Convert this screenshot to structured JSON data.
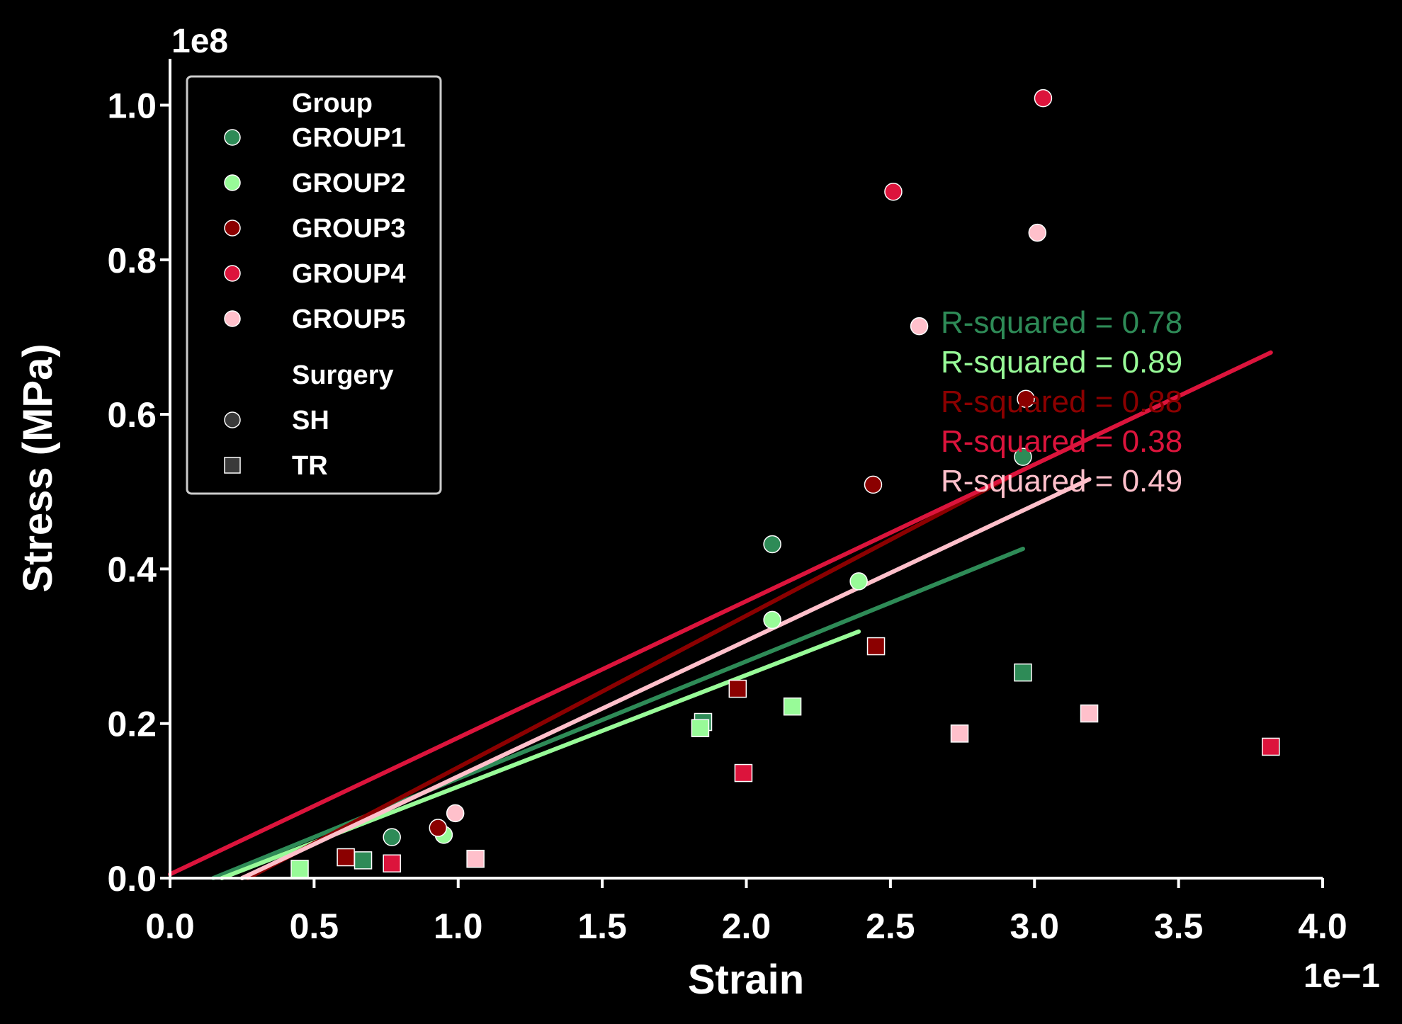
{
  "chart_data": {
    "type": "scatter",
    "title": "",
    "xlabel": "Strain",
    "ylabel": "Stress (MPa)",
    "x_offset_label": "1e−1",
    "y_offset_label": "1e8",
    "xlim": [
      0.0,
      4.0
    ],
    "ylim": [
      0.0,
      1.06
    ],
    "x_ticks": [
      "0.0",
      "0.5",
      "1.0",
      "1.5",
      "2.0",
      "2.5",
      "3.0",
      "3.5",
      "4.0"
    ],
    "y_ticks": [
      "0.0",
      "0.2",
      "0.4",
      "0.6",
      "0.8",
      "1.0"
    ],
    "legend": {
      "placement": "top-left",
      "group_title": "Group",
      "surgery_title": "Surgery",
      "groups": [
        {
          "name": "GROUP1",
          "color": "#2e8b57"
        },
        {
          "name": "GROUP2",
          "color": "#98fb98"
        },
        {
          "name": "GROUP3",
          "color": "#8b0000"
        },
        {
          "name": "GROUP4",
          "color": "#dc143c"
        },
        {
          "name": "GROUP5",
          "color": "#ffc0cb"
        }
      ],
      "surgeries": [
        {
          "name": "SH",
          "marker": "circle"
        },
        {
          "name": "TR",
          "marker": "square"
        }
      ]
    },
    "series": [
      {
        "name": "GROUP1",
        "color": "#2e8b57",
        "points": [
          {
            "x": 0.77,
            "y": 0.053,
            "surgery": "SH"
          },
          {
            "x": 2.09,
            "y": 0.432,
            "surgery": "SH"
          },
          {
            "x": 2.96,
            "y": 0.545,
            "surgery": "SH"
          },
          {
            "x": 0.67,
            "y": 0.023,
            "surgery": "TR"
          },
          {
            "x": 1.85,
            "y": 0.202,
            "surgery": "TR"
          },
          {
            "x": 2.96,
            "y": 0.266,
            "surgery": "TR"
          }
        ],
        "fit": {
          "x": [
            0.15,
            2.96
          ],
          "y": [
            0.0,
            0.426
          ]
        },
        "r_squared": "R-squared = 0.78"
      },
      {
        "name": "GROUP2",
        "color": "#98fb98",
        "points": [
          {
            "x": 0.95,
            "y": 0.056,
            "surgery": "SH"
          },
          {
            "x": 2.09,
            "y": 0.334,
            "surgery": "SH"
          },
          {
            "x": 2.39,
            "y": 0.384,
            "surgery": "SH"
          },
          {
            "x": 0.45,
            "y": 0.012,
            "surgery": "TR"
          },
          {
            "x": 1.84,
            "y": 0.194,
            "surgery": "TR"
          },
          {
            "x": 2.16,
            "y": 0.222,
            "surgery": "TR"
          }
        ],
        "fit": {
          "x": [
            0.18,
            2.39
          ],
          "y": [
            0.0,
            0.319
          ]
        },
        "r_squared": "R-squared = 0.89"
      },
      {
        "name": "GROUP3",
        "color": "#8b0000",
        "points": [
          {
            "x": 0.93,
            "y": 0.065,
            "surgery": "SH"
          },
          {
            "x": 2.44,
            "y": 0.509,
            "surgery": "SH"
          },
          {
            "x": 2.97,
            "y": 0.62,
            "surgery": "SH"
          },
          {
            "x": 0.61,
            "y": 0.027,
            "surgery": "TR"
          },
          {
            "x": 1.97,
            "y": 0.245,
            "surgery": "TR"
          },
          {
            "x": 2.45,
            "y": 0.3,
            "surgery": "TR"
          }
        ],
        "fit": {
          "x": [
            0.27,
            2.97
          ],
          "y": [
            0.0,
            0.53
          ]
        },
        "r_squared": "R-squared = 0.88"
      },
      {
        "name": "GROUP4",
        "color": "#dc143c",
        "points": [
          {
            "x": 2.51,
            "y": 0.888,
            "surgery": "SH"
          },
          {
            "x": 3.03,
            "y": 1.009,
            "surgery": "SH"
          },
          {
            "x": 0.77,
            "y": 0.019,
            "surgery": "TR"
          },
          {
            "x": 1.99,
            "y": 0.136,
            "surgery": "TR"
          },
          {
            "x": 3.82,
            "y": 0.17,
            "surgery": "TR"
          }
        ],
        "fit": {
          "x": [
            0.0,
            3.82
          ],
          "y": [
            0.005,
            0.68
          ]
        },
        "r_squared": "R-squared = 0.38"
      },
      {
        "name": "GROUP5",
        "color": "#ffc0cb",
        "points": [
          {
            "x": 0.99,
            "y": 0.084,
            "surgery": "SH"
          },
          {
            "x": 2.6,
            "y": 0.714,
            "surgery": "SH"
          },
          {
            "x": 3.01,
            "y": 0.835,
            "surgery": "SH"
          },
          {
            "x": 1.06,
            "y": 0.025,
            "surgery": "TR"
          },
          {
            "x": 2.74,
            "y": 0.187,
            "surgery": "TR"
          },
          {
            "x": 3.19,
            "y": 0.213,
            "surgery": "TR"
          }
        ],
        "fit": {
          "x": [
            0.25,
            3.19
          ],
          "y": [
            0.0,
            0.516
          ]
        },
        "r_squared": "R-squared = 0.49"
      }
    ],
    "grid": false
  }
}
